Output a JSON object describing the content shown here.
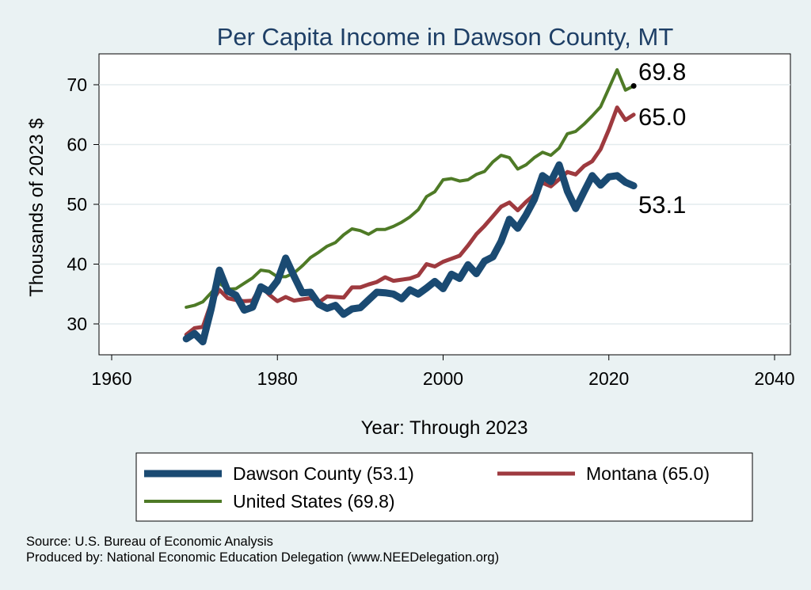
{
  "chart_data": {
    "type": "line",
    "title": "Per Capita Income in Dawson County, MT",
    "xlabel": "Year: Through 2023",
    "ylabel": "Thousands of 2023 $",
    "xlim": [
      1960,
      2040
    ],
    "ylim": [
      25,
      75
    ],
    "xticks": [
      "1960",
      "1980",
      "2000",
      "2020",
      "2040"
    ],
    "yticks": [
      "30",
      "40",
      "50",
      "60",
      "70"
    ],
    "grid": true,
    "legend_position": "bottom",
    "x": [
      1969,
      1970,
      1971,
      1972,
      1973,
      1974,
      1975,
      1976,
      1977,
      1978,
      1979,
      1980,
      1981,
      1982,
      1983,
      1984,
      1985,
      1986,
      1987,
      1988,
      1989,
      1990,
      1991,
      1992,
      1993,
      1994,
      1995,
      1996,
      1997,
      1998,
      1999,
      2000,
      2001,
      2002,
      2003,
      2004,
      2005,
      2006,
      2007,
      2008,
      2009,
      2010,
      2011,
      2012,
      2013,
      2014,
      2015,
      2016,
      2017,
      2018,
      2019,
      2020,
      2021,
      2022,
      2023
    ],
    "series": [
      {
        "name": "Dawson County (53.1)",
        "color": "#1a4a72",
        "values": [
          27.5,
          28.4,
          27.0,
          32.5,
          39.0,
          35.5,
          34.8,
          32.3,
          32.8,
          36.2,
          35.4,
          37.2,
          41.0,
          38.0,
          35.2,
          35.3,
          33.3,
          32.6,
          33.1,
          31.6,
          32.5,
          32.7,
          34.0,
          35.3,
          35.2,
          35.0,
          34.2,
          35.7,
          35.0,
          36.0,
          37.1,
          35.9,
          38.3,
          37.6,
          39.9,
          38.4,
          40.5,
          41.2,
          43.8,
          47.5,
          46.0,
          48.2,
          50.8,
          54.8,
          53.8,
          56.6,
          52.2,
          49.3,
          52.1,
          54.8,
          53.2,
          54.6,
          54.8,
          53.7,
          53.1
        ]
      },
      {
        "name": "Montana (65.0)",
        "color": "#9e3a3f",
        "values": [
          28.2,
          29.3,
          29.5,
          33.5,
          35.7,
          34.3,
          34.0,
          33.8,
          33.9,
          36.3,
          34.9,
          33.8,
          34.5,
          33.9,
          34.1,
          34.3,
          33.6,
          34.6,
          34.5,
          34.4,
          36.1,
          36.1,
          36.6,
          37.0,
          37.8,
          37.2,
          37.4,
          37.6,
          38.1,
          40.0,
          39.6,
          40.4,
          40.9,
          41.4,
          43.1,
          45.0,
          46.4,
          48.0,
          49.6,
          50.3,
          49.0,
          50.4,
          51.6,
          53.6,
          53.0,
          54.2,
          55.4,
          55.0,
          56.4,
          57.2,
          59.2,
          62.5,
          66.2,
          64.1,
          65.0
        ]
      },
      {
        "name": "United States (69.8)",
        "color": "#4e7a26",
        "values": [
          32.8,
          33.1,
          33.7,
          35.2,
          36.8,
          35.8,
          35.9,
          36.8,
          37.7,
          39.0,
          38.8,
          37.9,
          37.9,
          38.5,
          39.7,
          41.1,
          42.0,
          43.0,
          43.6,
          44.9,
          45.9,
          45.6,
          45.0,
          45.8,
          45.8,
          46.3,
          47.0,
          47.9,
          49.1,
          51.3,
          52.1,
          54.1,
          54.3,
          53.9,
          54.1,
          55.0,
          55.5,
          57.1,
          58.2,
          57.8,
          55.9,
          56.6,
          57.8,
          58.7,
          58.2,
          59.4,
          61.8,
          62.2,
          63.4,
          64.8,
          66.3,
          69.4,
          72.5,
          69.1,
          69.8
        ]
      }
    ],
    "end_labels": [
      "69.8",
      "65.0",
      "53.1"
    ],
    "legend": {
      "dawson": "Dawson County (53.1)",
      "montana": "Montana (65.0)",
      "us": "United States (69.8)"
    },
    "source_lines": [
      "Source: U.S. Bureau of Economic Analysis",
      "Produced by: National Economic Education Delegation (www.NEEDelegation.org)"
    ]
  }
}
